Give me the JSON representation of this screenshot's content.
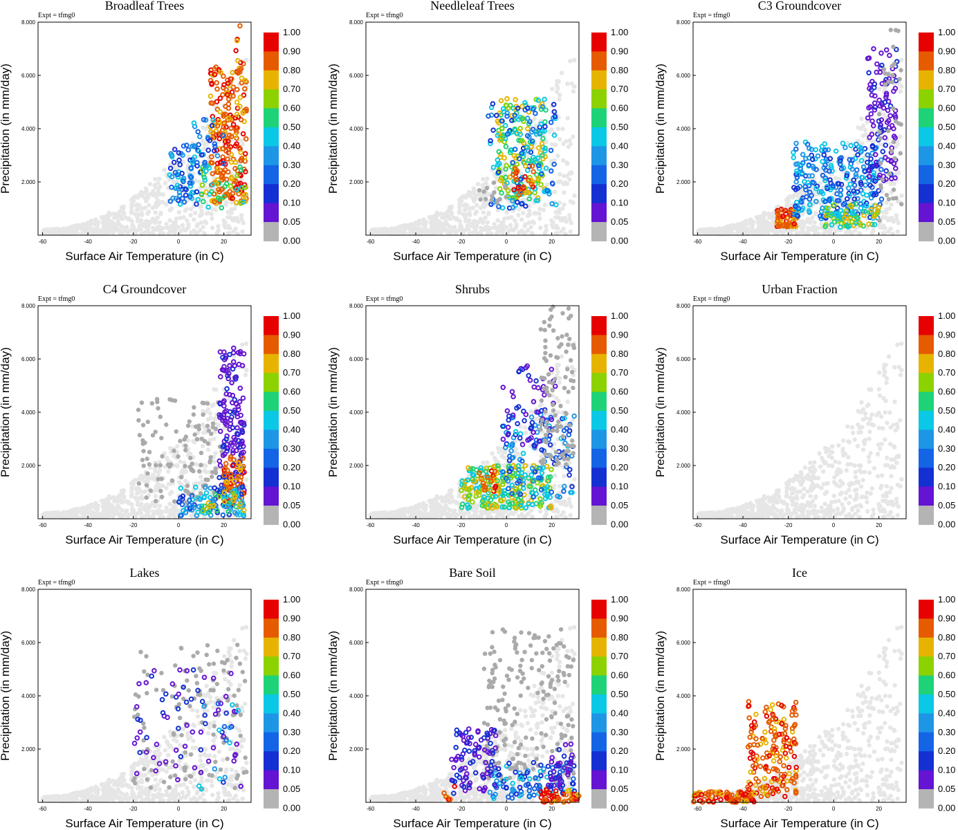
{
  "figure": {
    "colorbar": {
      "labels": [
        "1.00",
        "0.90",
        "0.80",
        "0.70",
        "0.60",
        "0.50",
        "0.40",
        "0.30",
        "0.20",
        "0.10",
        "0.05",
        "0.00"
      ],
      "colors": [
        "#e60000",
        "#e65a00",
        "#e6b400",
        "#8cd200",
        "#1ed278",
        "#0ac8e6",
        "#1e96e6",
        "#1464e6",
        "#1430d2",
        "#6414d2",
        "#b4b4b4"
      ]
    }
  },
  "colors": {
    "background_points": "#e6e6e6",
    "zero_points": "#aaaaaa"
  },
  "chart_data": [
    {
      "type": "scatter",
      "title": "Broadleaf Trees",
      "annotation": "Expt = tfmg0",
      "xlabel": "Surface Air Temperature (in C)",
      "ylabel": "Precipitation (in mm/day)",
      "xlim": [
        -62,
        32
      ],
      "ylim": [
        0,
        8
      ],
      "xticks": [
        "-60",
        "-40",
        "-20",
        "0",
        "20"
      ],
      "yticks": [
        "2.000",
        "4.000",
        "6.000",
        "8.000"
      ],
      "clusters": [
        {
          "cls": 1,
          "x": [
            -4,
            10
          ],
          "y": [
            1.1,
            3.4
          ],
          "n": 70
        },
        {
          "cls": 2,
          "x": [
            14,
            30
          ],
          "y": [
            1.2,
            6.5
          ],
          "n": 230
        },
        {
          "cls": 3,
          "x": [
            10,
            30
          ],
          "y": [
            1.0,
            2.6
          ],
          "n": 40
        },
        {
          "cls": 1,
          "x": [
            6,
            20
          ],
          "y": [
            2.6,
            4.4
          ],
          "n": 30
        },
        {
          "cls": 2,
          "x": [
            25,
            29
          ],
          "y": [
            6.5,
            8.0
          ],
          "n": 5
        }
      ]
    },
    {
      "type": "scatter",
      "title": "Needleleaf Trees",
      "annotation": "Expt = tfmg0",
      "xlabel": "Surface Air Temperature (in C)",
      "ylabel": "Precipitation (in mm/day)",
      "xlim": [
        -62,
        32
      ],
      "ylim": [
        0,
        8
      ],
      "xticks": [
        "-60",
        "-40",
        "-20",
        "0",
        "20"
      ],
      "yticks": [
        "2.000",
        "4.000",
        "6.000",
        "8.000"
      ],
      "clusters": [
        {
          "cls": 3,
          "x": [
            -4,
            18
          ],
          "y": [
            1.3,
            5.2
          ],
          "n": 180
        },
        {
          "cls": 1,
          "x": [
            -8,
            22
          ],
          "y": [
            1.0,
            5.0
          ],
          "n": 90
        },
        {
          "cls": 2,
          "x": [
            2,
            12
          ],
          "y": [
            1.5,
            2.6
          ],
          "n": 25
        },
        {
          "cls": 0,
          "x": [
            -12,
            0
          ],
          "y": [
            1.2,
            2.0
          ],
          "n": 15
        }
      ]
    },
    {
      "type": "scatter",
      "title": "C3 Groundcover",
      "annotation": "Expt = tfmg0",
      "xlabel": "Surface Air Temperature (in C)",
      "ylabel": "Precipitation (in mm/day)",
      "xlim": [
        -62,
        32
      ],
      "ylim": [
        0,
        8
      ],
      "xticks": [
        "-60",
        "-40",
        "-20",
        "0",
        "20"
      ],
      "yticks": [
        "2.000",
        "4.000",
        "6.000",
        "8.000"
      ],
      "clusters": [
        {
          "cls": 2,
          "x": [
            -25,
            -16
          ],
          "y": [
            0.3,
            1.0
          ],
          "n": 60
        },
        {
          "cls": 1,
          "x": [
            -18,
            22
          ],
          "y": [
            0.6,
            3.5
          ],
          "n": 260
        },
        {
          "cls": 4,
          "x": [
            15,
            28
          ],
          "y": [
            2.0,
            7.0
          ],
          "n": 110
        },
        {
          "cls": 3,
          "x": [
            -4,
            20
          ],
          "y": [
            0.3,
            1.2
          ],
          "n": 70
        },
        {
          "cls": 0,
          "x": [
            20,
            30
          ],
          "y": [
            0.5,
            7.8
          ],
          "n": 40
        }
      ]
    },
    {
      "type": "scatter",
      "title": "C4 Groundcover",
      "annotation": "Expt = tfmg0",
      "xlabel": "Surface Air Temperature (in C)",
      "ylabel": "Precipitation (in mm/day)",
      "xlim": [
        -62,
        32
      ],
      "ylim": [
        0,
        8
      ],
      "xticks": [
        "-60",
        "-40",
        "-20",
        "0",
        "20"
      ],
      "yticks": [
        "2.000",
        "4.000",
        "6.000",
        "8.000"
      ],
      "clusters": [
        {
          "cls": 0,
          "x": [
            -18,
            20
          ],
          "y": [
            0.5,
            4.5
          ],
          "n": 120
        },
        {
          "cls": 4,
          "x": [
            18,
            29
          ],
          "y": [
            1.0,
            6.5
          ],
          "n": 150
        },
        {
          "cls": 2,
          "x": [
            20,
            29
          ],
          "y": [
            0.5,
            2.4
          ],
          "n": 70
        },
        {
          "cls": 1,
          "x": [
            0,
            29
          ],
          "y": [
            0.1,
            1.2
          ],
          "n": 90
        },
        {
          "cls": 3,
          "x": [
            8,
            29
          ],
          "y": [
            0.1,
            1.0
          ],
          "n": 30
        }
      ]
    },
    {
      "type": "scatter",
      "title": "Shrubs",
      "annotation": "Expt = tfmg0",
      "xlabel": "Surface Air Temperature (in C)",
      "ylabel": "Precipitation (in mm/day)",
      "xlim": [
        -62,
        32
      ],
      "ylim": [
        0,
        8
      ],
      "xticks": [
        "-60",
        "-40",
        "-20",
        "0",
        "20"
      ],
      "yticks": [
        "2.000",
        "4.000",
        "6.000",
        "8.000"
      ],
      "clusters": [
        {
          "cls": 3,
          "x": [
            -20,
            20
          ],
          "y": [
            0.4,
            2.0
          ],
          "n": 230
        },
        {
          "cls": 1,
          "x": [
            -2,
            30
          ],
          "y": [
            0.8,
            4.0
          ],
          "n": 120
        },
        {
          "cls": 4,
          "x": [
            -2,
            22
          ],
          "y": [
            2.5,
            6.0
          ],
          "n": 50
        },
        {
          "cls": 0,
          "x": [
            15,
            30
          ],
          "y": [
            2.0,
            8.0
          ],
          "n": 100
        },
        {
          "cls": 2,
          "x": [
            -12,
            -4
          ],
          "y": [
            1.0,
            1.8
          ],
          "n": 20
        }
      ]
    },
    {
      "type": "scatter",
      "title": "Urban Fraction",
      "annotation": "Expt = tfmg0",
      "xlabel": "Surface Air Temperature (in C)",
      "ylabel": "Precipitation (in mm/day)",
      "xlim": [
        -62,
        32
      ],
      "ylim": [
        0,
        8
      ],
      "xticks": [
        "-60",
        "-40",
        "-20",
        "0",
        "20"
      ],
      "yticks": [
        "2.000",
        "4.000",
        "6.000",
        "8.000"
      ],
      "clusters": []
    },
    {
      "type": "scatter",
      "title": "Lakes",
      "annotation": "Expt = tfmg0",
      "xlabel": "Surface Air Temperature (in C)",
      "ylabel": "Precipitation (in mm/day)",
      "xlim": [
        -62,
        32
      ],
      "ylim": [
        0,
        8
      ],
      "xticks": [
        "-60",
        "-40",
        "-20",
        "0",
        "20"
      ],
      "yticks": [
        "2.000",
        "4.000",
        "6.000",
        "8.000"
      ],
      "clusters": [
        {
          "cls": 0,
          "x": [
            -20,
            30
          ],
          "y": [
            0.5,
            6.0
          ],
          "n": 120
        },
        {
          "cls": 4,
          "x": [
            -20,
            28
          ],
          "y": [
            0.6,
            5.0
          ],
          "n": 70
        },
        {
          "cls": 1,
          "x": [
            8,
            28
          ],
          "y": [
            0.5,
            4.0
          ],
          "n": 15
        }
      ]
    },
    {
      "type": "scatter",
      "title": "Bare Soil",
      "annotation": "Expt = tfmg0",
      "xlabel": "Surface Air Temperature (in C)",
      "ylabel": "Precipitation (in mm/day)",
      "xlim": [
        -62,
        32
      ],
      "ylim": [
        0,
        8
      ],
      "xticks": [
        "-60",
        "-40",
        "-20",
        "0",
        "20"
      ],
      "yticks": [
        "2.000",
        "4.000",
        "6.000",
        "8.000"
      ],
      "clusters": [
        {
          "cls": 0,
          "x": [
            -10,
            30
          ],
          "y": [
            0.8,
            6.5
          ],
          "n": 200
        },
        {
          "cls": 4,
          "x": [
            -25,
            -4
          ],
          "y": [
            0.3,
            2.8
          ],
          "n": 90
        },
        {
          "cls": 1,
          "x": [
            -8,
            30
          ],
          "y": [
            0.1,
            1.5
          ],
          "n": 90
        },
        {
          "cls": 2,
          "x": [
            15,
            32
          ],
          "y": [
            0.0,
            0.5
          ],
          "n": 50
        },
        {
          "cls": 4,
          "x": [
            18,
            30
          ],
          "y": [
            0.5,
            2.2
          ],
          "n": 40
        },
        {
          "cls": 2,
          "x": [
            -28,
            -22
          ],
          "y": [
            0.1,
            0.6
          ],
          "n": 6
        }
      ]
    },
    {
      "type": "scatter",
      "title": "Ice",
      "annotation": "Expt = tfmg0",
      "xlabel": "Surface Air Temperature (in C)",
      "ylabel": "Precipitation (in mm/day)",
      "xlim": [
        -62,
        32
      ],
      "ylim": [
        0,
        8
      ],
      "xticks": [
        "-60",
        "-40",
        "-20",
        "0",
        "20"
      ],
      "yticks": [
        "2.000",
        "4.000",
        "6.000",
        "8.000"
      ],
      "clusters": [
        {
          "cls": 2,
          "x": [
            -62,
            -35
          ],
          "y": [
            0.0,
            0.4
          ],
          "n": 90
        },
        {
          "cls": 2,
          "x": [
            -38,
            -16
          ],
          "y": [
            0.2,
            3.8
          ],
          "n": 170
        }
      ]
    }
  ]
}
